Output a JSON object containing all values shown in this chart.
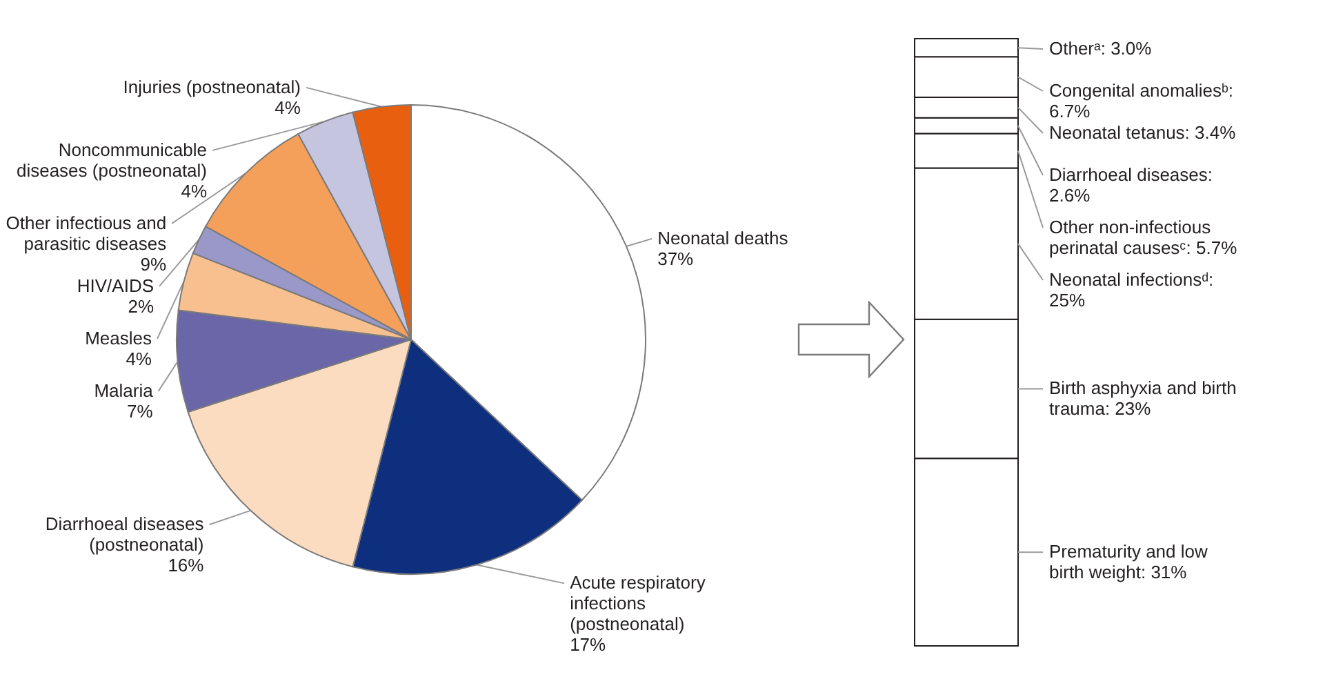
{
  "chart_data": [
    {
      "type": "pie",
      "categories": [
        "Neonatal deaths",
        "Acute respiratory infections (postneonatal)",
        "Diarrhoeal diseases (postneonatal)",
        "Malaria",
        "Measles",
        "HIV/AIDS",
        "Other infectious and parasitic diseases",
        "Noncommunicable diseases (postneonatal)",
        "Injuries (postneonatal)"
      ],
      "values": [
        37,
        17,
        16,
        7,
        4,
        2,
        9,
        4,
        4
      ],
      "value_labels": [
        "37%",
        "17%",
        "16%",
        "7%",
        "4%",
        "2%",
        "9%",
        "4%",
        "4%"
      ],
      "colors": [
        "#ffffff",
        "#0d2f7e",
        "#fcdcc0",
        "#6a66a8",
        "#f9c08f",
        "#9a98c8",
        "#f5a05a",
        "#c6c5e0",
        "#e8600f"
      ]
    },
    {
      "type": "bar",
      "stacked": true,
      "categories": [
        null
      ],
      "series": [
        {
          "name": "Prematurity and low birth weight:",
          "color": "#ffffff",
          "values": [
            31
          ],
          "value_labels": [
            "31%"
          ]
        },
        {
          "name": "Birth asphyxia and birth trauma:",
          "color": "#ffffff",
          "values": [
            23
          ],
          "value_labels": [
            "23%"
          ]
        },
        {
          "name": "Neonatal infectionsᵈ:",
          "color": "#ffffff",
          "values": [
            25
          ],
          "value_labels": [
            "25%"
          ]
        },
        {
          "name": "Other non-infectious perinatal causesᶜ:",
          "color": "#ffffff",
          "values": [
            5.7
          ],
          "value_labels": [
            "5.7%"
          ]
        },
        {
          "name": "Diarrhoeal diseases:",
          "color": "#ffffff",
          "values": [
            2.6
          ],
          "value_labels": [
            "2.6%"
          ]
        },
        {
          "name": "Neonatal tetanus:",
          "color": "#ffffff",
          "values": [
            3.4
          ],
          "value_labels": [
            "3.4%"
          ]
        },
        {
          "name": "Congenital anomaliesᵇ:",
          "color": "#ffffff",
          "values": [
            6.7
          ],
          "value_labels": [
            "6.7%"
          ]
        },
        {
          "name": "Otherᵃ:",
          "color": "#ffffff",
          "values": [
            3.0
          ],
          "value_labels": [
            "3.0%"
          ]
        }
      ]
    }
  ]
}
